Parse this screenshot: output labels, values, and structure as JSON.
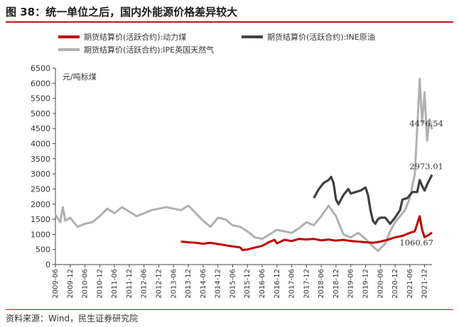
{
  "figure_title": "图 38：统一单位之后，国内外能源价格差异较大",
  "source_note": "资料来源：Wind，民生证券研究院",
  "chart_data": {
    "type": "line",
    "unit_label": "元/吨标煤",
    "ylim": [
      0,
      6500
    ],
    "yticks": [
      0,
      500,
      1000,
      1500,
      2000,
      2500,
      3000,
      3500,
      4000,
      4500,
      5000,
      5500,
      6000,
      6500
    ],
    "xlim": [
      "2009-06",
      "2022-03"
    ],
    "xticks": [
      "2009-06",
      "2009-12",
      "2010-06",
      "2010-12",
      "2011-06",
      "2011-12",
      "2012-06",
      "2012-12",
      "2013-06",
      "2013-12",
      "2014-06",
      "2014-12",
      "2015-06",
      "2015-12",
      "2016-06",
      "2016-12",
      "2017-06",
      "2017-12",
      "2018-06",
      "2018-12",
      "2019-06",
      "2019-12",
      "2020-06",
      "2020-12",
      "2021-06",
      "2021-12"
    ],
    "grid": false,
    "legend_position": "top",
    "series": [
      {
        "name": "期货结算价(活跃合约):动力煤",
        "color": "#c00000",
        "width": 3,
        "points": [
          [
            "2013-09",
            760
          ],
          [
            "2013-12",
            740
          ],
          [
            "2014-03",
            720
          ],
          [
            "2014-06",
            690
          ],
          [
            "2014-09",
            720
          ],
          [
            "2014-12",
            680
          ],
          [
            "2015-03",
            640
          ],
          [
            "2015-06",
            600
          ],
          [
            "2015-09",
            570
          ],
          [
            "2015-10",
            480
          ],
          [
            "2015-12",
            500
          ],
          [
            "2016-03",
            560
          ],
          [
            "2016-06",
            620
          ],
          [
            "2016-09",
            750
          ],
          [
            "2016-11",
            820
          ],
          [
            "2016-12",
            700
          ],
          [
            "2017-03",
            820
          ],
          [
            "2017-06",
            780
          ],
          [
            "2017-09",
            850
          ],
          [
            "2017-12",
            830
          ],
          [
            "2018-03",
            850
          ],
          [
            "2018-06",
            800
          ],
          [
            "2018-09",
            830
          ],
          [
            "2018-12",
            790
          ],
          [
            "2019-03",
            820
          ],
          [
            "2019-06",
            780
          ],
          [
            "2019-09",
            760
          ],
          [
            "2019-12",
            740
          ],
          [
            "2020-03",
            720
          ],
          [
            "2020-06",
            760
          ],
          [
            "2020-09",
            820
          ],
          [
            "2020-12",
            900
          ],
          [
            "2021-03",
            950
          ],
          [
            "2021-06",
            1050
          ],
          [
            "2021-08",
            1100
          ],
          [
            "2021-10",
            1600
          ],
          [
            "2021-11",
            1150
          ],
          [
            "2021-12",
            900
          ],
          [
            "2022-02",
            1000
          ],
          [
            "2022-03",
            1060.67
          ]
        ]
      },
      {
        "name": "期货结算价(活跃合约):INE原油",
        "color": "#404040",
        "width": 3.2,
        "points": [
          [
            "2018-03",
            2200
          ],
          [
            "2018-05",
            2500
          ],
          [
            "2018-07",
            2700
          ],
          [
            "2018-09",
            2800
          ],
          [
            "2018-10",
            2900
          ],
          [
            "2018-11",
            2700
          ],
          [
            "2018-12",
            2150
          ],
          [
            "2019-01",
            2000
          ],
          [
            "2019-03",
            2300
          ],
          [
            "2019-05",
            2500
          ],
          [
            "2019-06",
            2350
          ],
          [
            "2019-08",
            2400
          ],
          [
            "2019-10",
            2450
          ],
          [
            "2019-12",
            2550
          ],
          [
            "2020-01",
            2300
          ],
          [
            "2020-02",
            1800
          ],
          [
            "2020-03",
            1450
          ],
          [
            "2020-04",
            1350
          ],
          [
            "2020-05",
            1500
          ],
          [
            "2020-06",
            1550
          ],
          [
            "2020-08",
            1550
          ],
          [
            "2020-10",
            1350
          ],
          [
            "2020-12",
            1550
          ],
          [
            "2021-02",
            1800
          ],
          [
            "2021-03",
            2150
          ],
          [
            "2021-05",
            2200
          ],
          [
            "2021-07",
            2400
          ],
          [
            "2021-09",
            2400
          ],
          [
            "2021-10",
            2800
          ],
          [
            "2021-11",
            2600
          ],
          [
            "2021-12",
            2450
          ],
          [
            "2022-01",
            2650
          ],
          [
            "2022-03",
            2973.01
          ]
        ]
      },
      {
        "name": "期货结算价(活跃合约):IPE英国天然气",
        "color": "#b0b0b0",
        "width": 3,
        "points": [
          [
            "2009-06",
            1650
          ],
          [
            "2009-08",
            1400
          ],
          [
            "2009-09",
            1900
          ],
          [
            "2009-10",
            1450
          ],
          [
            "2009-12",
            1550
          ],
          [
            "2010-03",
            1250
          ],
          [
            "2010-06",
            1350
          ],
          [
            "2010-09",
            1400
          ],
          [
            "2010-12",
            1600
          ],
          [
            "2011-03",
            1850
          ],
          [
            "2011-06",
            1700
          ],
          [
            "2011-09",
            1900
          ],
          [
            "2011-12",
            1750
          ],
          [
            "2012-03",
            1600
          ],
          [
            "2012-06",
            1700
          ],
          [
            "2012-09",
            1800
          ],
          [
            "2012-12",
            1850
          ],
          [
            "2013-03",
            1900
          ],
          [
            "2013-06",
            1850
          ],
          [
            "2013-09",
            1800
          ],
          [
            "2013-12",
            1950
          ],
          [
            "2014-03",
            1700
          ],
          [
            "2014-06",
            1450
          ],
          [
            "2014-09",
            1250
          ],
          [
            "2014-12",
            1550
          ],
          [
            "2015-03",
            1500
          ],
          [
            "2015-06",
            1300
          ],
          [
            "2015-09",
            1250
          ],
          [
            "2015-12",
            1100
          ],
          [
            "2016-03",
            900
          ],
          [
            "2016-06",
            850
          ],
          [
            "2016-09",
            1000
          ],
          [
            "2016-12",
            1150
          ],
          [
            "2017-03",
            1100
          ],
          [
            "2017-06",
            1050
          ],
          [
            "2017-09",
            1200
          ],
          [
            "2017-12",
            1400
          ],
          [
            "2018-03",
            1300
          ],
          [
            "2018-06",
            1600
          ],
          [
            "2018-09",
            1950
          ],
          [
            "2018-12",
            1600
          ],
          [
            "2019-03",
            1000
          ],
          [
            "2019-06",
            900
          ],
          [
            "2019-09",
            1050
          ],
          [
            "2019-12",
            850
          ],
          [
            "2020-03",
            600
          ],
          [
            "2020-05",
            450
          ],
          [
            "2020-08",
            700
          ],
          [
            "2020-10",
            1100
          ],
          [
            "2020-12",
            1400
          ],
          [
            "2021-02",
            1600
          ],
          [
            "2021-04",
            1800
          ],
          [
            "2021-06",
            2200
          ],
          [
            "2021-08",
            3000
          ],
          [
            "2021-09",
            4500
          ],
          [
            "2021-10",
            6150
          ],
          [
            "2021-11",
            4700
          ],
          [
            "2021-12",
            5700
          ],
          [
            "2022-01",
            4100
          ],
          [
            "2022-02",
            4800
          ],
          [
            "2022-03",
            4476.54
          ]
        ]
      }
    ],
    "annotations": [
      {
        "text": "4476.54",
        "x": "2021-07",
        "y": 4476.54
      },
      {
        "text": "2973.01",
        "x": "2021-07",
        "y": 2973.01
      },
      {
        "text": "1060.67",
        "x": "2021-03",
        "y": 1060.67
      }
    ]
  }
}
